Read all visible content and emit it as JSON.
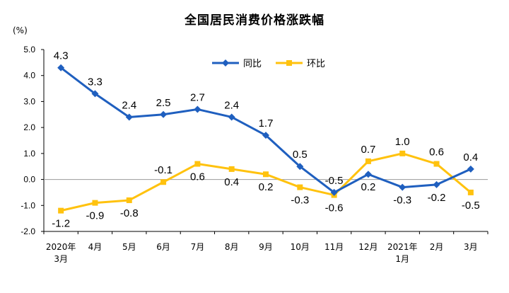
{
  "title": "全国居民消费价格涨跌幅",
  "unit": "(%)",
  "chart_data": {
    "type": "line",
    "title": "全国居民消费价格涨跌幅",
    "ylabel": "(%)",
    "ylim": [
      -2.0,
      5.0
    ],
    "yticks": [
      "5.0",
      "4.0",
      "3.0",
      "2.0",
      "1.0",
      "0.0",
      "-1.0",
      "-2.0"
    ],
    "categories": [
      [
        "2020年",
        "3月"
      ],
      [
        "4月"
      ],
      [
        "5月"
      ],
      [
        "6月"
      ],
      [
        "7月"
      ],
      [
        "8月"
      ],
      [
        "9月"
      ],
      [
        "10月"
      ],
      [
        "11月"
      ],
      [
        "12月"
      ],
      [
        "2021年",
        "1月"
      ],
      [
        "2月"
      ],
      [
        "3月"
      ]
    ],
    "legend_position": "top-center",
    "grid": false,
    "series": [
      {
        "name": "同比",
        "color": "#1f5fbf",
        "marker": "diamond",
        "values": [
          4.3,
          3.3,
          2.4,
          2.5,
          2.7,
          2.4,
          1.7,
          0.5,
          -0.5,
          0.2,
          -0.3,
          -0.2,
          0.4
        ],
        "labels": [
          "4.3",
          "3.3",
          "2.4",
          "2.5",
          "2.7",
          "2.4",
          "1.7",
          "0.5",
          "-0.5",
          "0.2",
          "-0.3",
          "-0.2",
          "0.4"
        ],
        "label_pos": [
          "above",
          "above",
          "above",
          "above",
          "above",
          "above",
          "above",
          "above",
          "above",
          "below",
          "below",
          "below",
          "above"
        ]
      },
      {
        "name": "环比",
        "color": "#ffc20e",
        "marker": "square",
        "values": [
          -1.2,
          -0.9,
          -0.8,
          -0.1,
          0.6,
          0.4,
          0.2,
          -0.3,
          -0.6,
          0.7,
          1.0,
          0.6,
          -0.5
        ],
        "labels": [
          "-1.2",
          "-0.9",
          "-0.8",
          "-0.1",
          "0.6",
          "0.4",
          "0.2",
          "-0.3",
          "-0.6",
          "0.7",
          "1.0",
          "0.6",
          "-0.5"
        ],
        "label_pos": [
          "below",
          "below",
          "below",
          "above",
          "below",
          "below",
          "below",
          "below",
          "below",
          "above",
          "above",
          "above",
          "below"
        ]
      }
    ]
  }
}
